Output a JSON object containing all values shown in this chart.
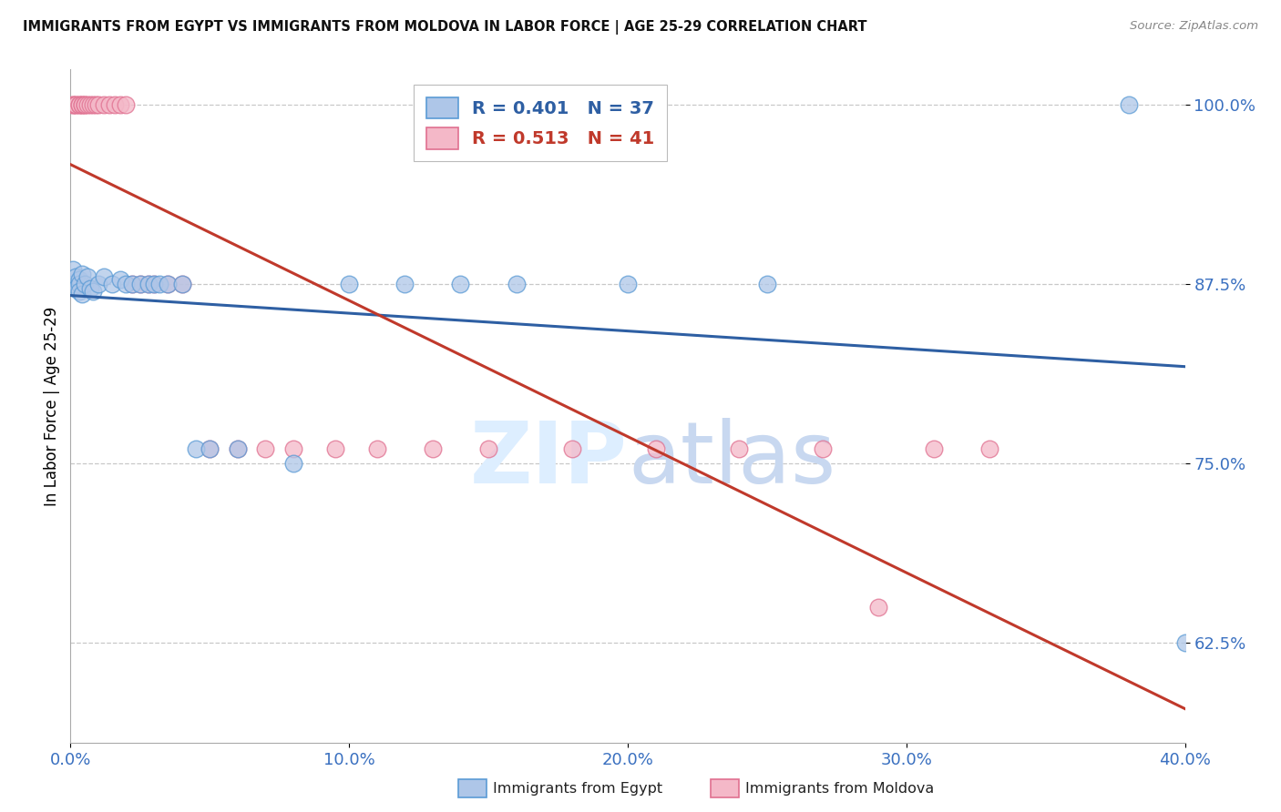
{
  "title": "IMMIGRANTS FROM EGYPT VS IMMIGRANTS FROM MOLDOVA IN LABOR FORCE | AGE 25-29 CORRELATION CHART",
  "source": "Source: ZipAtlas.com",
  "ylabel": "In Labor Force | Age 25-29",
  "xmin": 0.0,
  "xmax": 0.4,
  "ymin": 0.555,
  "ymax": 1.025,
  "xtick_labels": [
    "0.0%",
    "",
    "",
    "",
    "",
    "10.0%",
    "",
    "",
    "",
    "",
    "20.0%",
    "",
    "",
    "",
    "",
    "30.0%",
    "",
    "",
    "",
    "",
    "40.0%"
  ],
  "xtick_vals": [
    0.0,
    0.02,
    0.04,
    0.06,
    0.08,
    0.1,
    0.12,
    0.14,
    0.16,
    0.18,
    0.2,
    0.22,
    0.24,
    0.26,
    0.28,
    0.3,
    0.32,
    0.34,
    0.36,
    0.38,
    0.4
  ],
  "xtick_major_labels": [
    "0.0%",
    "10.0%",
    "20.0%",
    "30.0%",
    "40.0%"
  ],
  "xtick_major_vals": [
    0.0,
    0.1,
    0.2,
    0.3,
    0.4
  ],
  "ytick_labels": [
    "62.5%",
    "75.0%",
    "87.5%",
    "100.0%"
  ],
  "ytick_vals": [
    0.625,
    0.75,
    0.875,
    1.0
  ],
  "grid_color": "#c8c8c8",
  "background_color": "#ffffff",
  "egypt_color": "#aec6e8",
  "egypt_edge_color": "#5b9bd5",
  "moldova_color": "#f4b8c8",
  "moldova_edge_color": "#e07090",
  "egypt_line_color": "#2e5fa3",
  "moldova_line_color": "#c0392b",
  "egypt_R": 0.401,
  "egypt_N": 37,
  "moldova_R": 0.513,
  "moldova_N": 41,
  "legend_label_egypt": "Immigrants from Egypt",
  "legend_label_moldova": "Immigrants from Moldova",
  "egypt_x": [
    0.001,
    0.001,
    0.002,
    0.002,
    0.003,
    0.003,
    0.003,
    0.004,
    0.004,
    0.005,
    0.006,
    0.007,
    0.008,
    0.01,
    0.012,
    0.015,
    0.018,
    0.02,
    0.022,
    0.025,
    0.028,
    0.03,
    0.032,
    0.035,
    0.04,
    0.045,
    0.05,
    0.06,
    0.08,
    0.1,
    0.12,
    0.14,
    0.16,
    0.2,
    0.25,
    0.38,
    0.4
  ],
  "egypt_y": [
    0.885,
    0.875,
    0.88,
    0.872,
    0.878,
    0.875,
    0.87,
    0.882,
    0.868,
    0.875,
    0.88,
    0.872,
    0.87,
    0.875,
    0.88,
    0.875,
    0.878,
    0.875,
    0.875,
    0.875,
    0.875,
    0.875,
    0.875,
    0.875,
    0.875,
    0.76,
    0.76,
    0.76,
    0.75,
    0.875,
    0.875,
    0.875,
    0.875,
    0.875,
    0.875,
    1.0,
    0.625
  ],
  "moldova_x": [
    0.001,
    0.001,
    0.002,
    0.002,
    0.003,
    0.003,
    0.004,
    0.004,
    0.005,
    0.005,
    0.006,
    0.007,
    0.008,
    0.009,
    0.01,
    0.012,
    0.014,
    0.016,
    0.018,
    0.02,
    0.022,
    0.025,
    0.028,
    0.03,
    0.035,
    0.04,
    0.05,
    0.06,
    0.07,
    0.08,
    0.095,
    0.11,
    0.13,
    0.15,
    0.18,
    0.21,
    0.24,
    0.27,
    0.29,
    0.31,
    0.33
  ],
  "moldova_y": [
    1.0,
    1.0,
    1.0,
    1.0,
    1.0,
    1.0,
    1.0,
    1.0,
    1.0,
    1.0,
    1.0,
    1.0,
    1.0,
    1.0,
    1.0,
    1.0,
    1.0,
    1.0,
    1.0,
    1.0,
    0.875,
    0.875,
    0.875,
    0.875,
    0.875,
    0.875,
    0.76,
    0.76,
    0.76,
    0.76,
    0.76,
    0.76,
    0.76,
    0.76,
    0.76,
    0.76,
    0.76,
    0.76,
    0.65,
    0.76,
    0.76
  ],
  "watermark_zip": "ZIP",
  "watermark_atlas": "atlas",
  "watermark_color": "#ddeeff"
}
